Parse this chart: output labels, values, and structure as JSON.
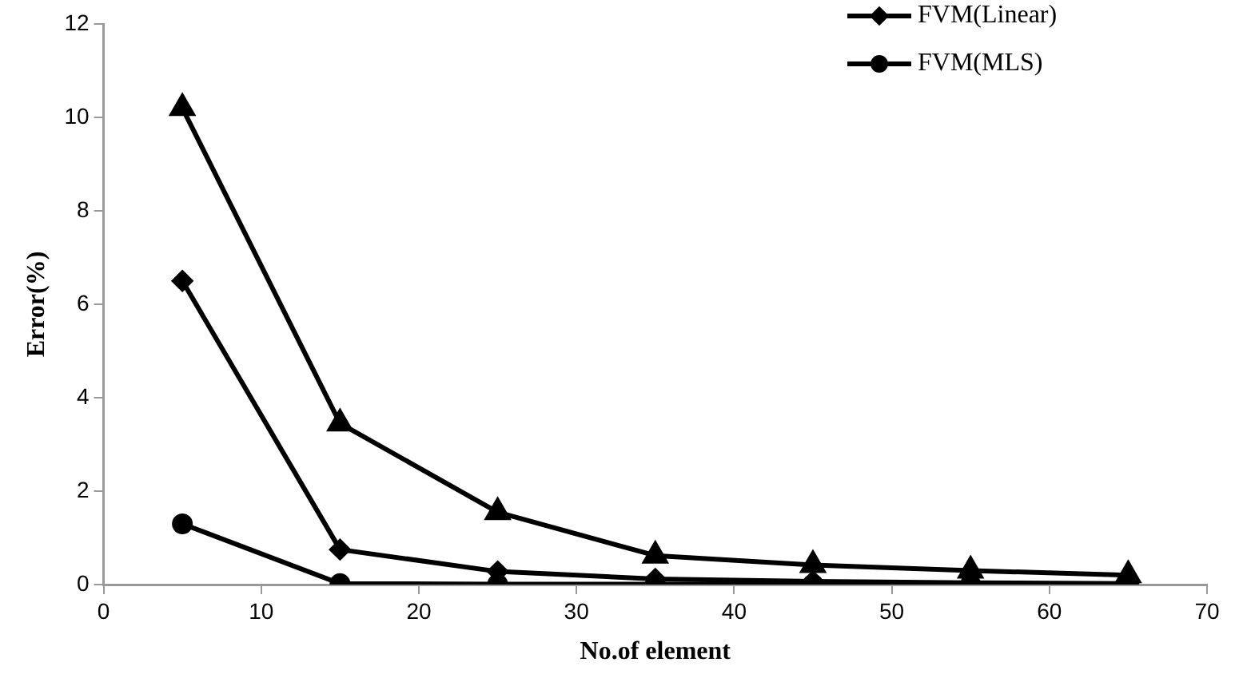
{
  "chart_data": {
    "type": "line",
    "xlabel": "No.of element",
    "ylabel": "Error(%)",
    "x": [
      5,
      15,
      25,
      35,
      45,
      55,
      65
    ],
    "series": [
      {
        "name": "FVM(Linear)",
        "color": "#000000",
        "marker": "diamond",
        "values": [
          6.5,
          0.75,
          0.28,
          0.12,
          0.07,
          0.04,
          0.02
        ]
      },
      {
        "name": "FVM(MLS)",
        "color": "#000000",
        "marker": "circle",
        "values": [
          1.3,
          0.02,
          0.01,
          0.01,
          0.01,
          0.01,
          0.01
        ]
      },
      {
        "color": "#000000",
        "marker": "triangle",
        "values": [
          10.2,
          3.45,
          1.55,
          0.62,
          0.42,
          0.3,
          0.2
        ]
      }
    ],
    "xlim": [
      0,
      70
    ],
    "xticks": [
      0,
      10,
      20,
      30,
      40,
      50,
      60,
      70
    ],
    "ylim": [
      0,
      12
    ],
    "yticks": [
      0,
      2,
      4,
      6,
      8,
      10,
      12
    ],
    "grid": false,
    "legend": "top right",
    "line_style": "solid"
  }
}
